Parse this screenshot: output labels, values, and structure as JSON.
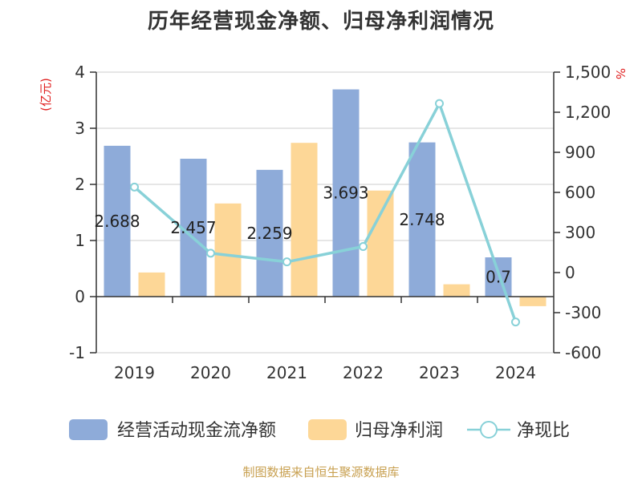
{
  "title": "历年经营现金净额、归母净利润情况",
  "source_note": "制图数据来自恒生聚源数据库",
  "chart_data": {
    "type": "bar",
    "categories": [
      "2019",
      "2020",
      "2021",
      "2022",
      "2023",
      "2024"
    ],
    "left_axis": {
      "unit_label": "(亿元)",
      "ylim": [
        -1,
        4
      ],
      "ticks": [
        "-1",
        "0",
        "1",
        "2",
        "3",
        "4"
      ]
    },
    "right_axis": {
      "unit_label": "%",
      "ylim": [
        -600,
        1500
      ],
      "ticks": [
        "-600",
        "-300",
        "0",
        "300",
        "600",
        "900",
        "1,200",
        "1,500"
      ]
    },
    "series": [
      {
        "name": "经营活动现金流净额",
        "type": "bar",
        "axis": "left",
        "color": "#8eabd9",
        "values": [
          2.688,
          2.457,
          2.259,
          3.693,
          2.748,
          0.7
        ],
        "labels": [
          "2.688",
          "2.457",
          "2.259",
          "3.693",
          "2.748",
          "0.7"
        ]
      },
      {
        "name": "归母净利润",
        "type": "bar",
        "axis": "left",
        "color": "#fdd797",
        "values": [
          0.43,
          1.66,
          2.74,
          1.89,
          0.22,
          -0.17
        ]
      },
      {
        "name": "净现比",
        "type": "line",
        "axis": "right",
        "color": "#88d1d8",
        "values": [
          640,
          145,
          80,
          195,
          1265,
          -370
        ]
      }
    ],
    "grid": true,
    "legend_position": "bottom"
  }
}
